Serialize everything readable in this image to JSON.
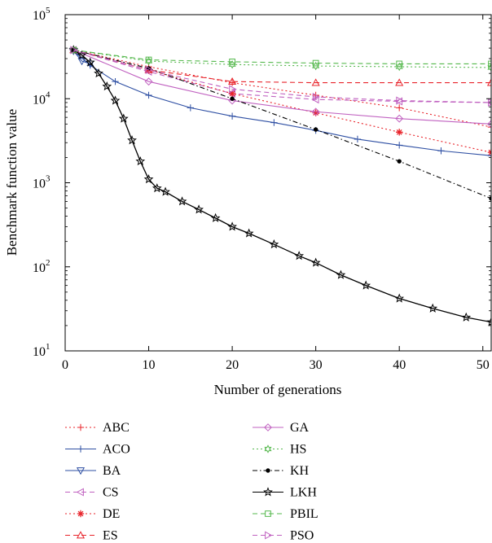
{
  "chart_data": {
    "type": "line",
    "xlabel": "Number of generations",
    "ylabel": "Benchmark function value",
    "xlim": [
      0,
      51
    ],
    "ylim": [
      10,
      100000
    ],
    "yscale": "log",
    "grid": false,
    "legend_position": "below",
    "x_ticks": [
      0,
      10,
      20,
      30,
      40,
      50
    ],
    "x_tick_labels": [
      "0",
      "10",
      "20",
      "30",
      "40",
      "50"
    ],
    "y_ticks": [
      10,
      100,
      1000,
      10000,
      100000
    ],
    "y_tick_labels": [
      {
        "base": "10",
        "exp": "1"
      },
      {
        "base": "10",
        "exp": "2"
      },
      {
        "base": "10",
        "exp": "3"
      },
      {
        "base": "10",
        "exp": "4"
      },
      {
        "base": "10",
        "exp": "5"
      }
    ],
    "series": [
      {
        "name": "ABC",
        "color": "#e8232a",
        "dash": "2,3",
        "marker": "plus",
        "x": [
          1,
          10,
          20,
          30,
          40,
          51
        ],
        "y": [
          38000,
          24000,
          15500,
          11000,
          7800,
          4600
        ]
      },
      {
        "name": "ACO",
        "color": "#2e4fa3",
        "dash": "",
        "marker": "plus",
        "x": [
          1,
          3,
          6,
          10,
          15,
          20,
          25,
          30,
          35,
          40,
          45,
          51
        ],
        "y": [
          37000,
          25000,
          16000,
          11000,
          7800,
          6200,
          5200,
          4200,
          3300,
          2800,
          2400,
          2100
        ]
      },
      {
        "name": "BA",
        "color": "#2e4fa3",
        "dash": "",
        "marker": "triangle-down",
        "x": [
          1,
          2,
          3
        ],
        "y": [
          37000,
          28000,
          26000
        ]
      },
      {
        "name": "CS",
        "color": "#c061c0",
        "dash": "6,4",
        "marker": "triangle-left",
        "x": [
          1,
          10,
          20,
          30,
          40,
          51
        ],
        "y": [
          38000,
          21000,
          11500,
          9800,
          9300,
          9000
        ]
      },
      {
        "name": "DE",
        "color": "#e8232a",
        "dash": "2,3",
        "marker": "asterisk",
        "x": [
          1,
          10,
          20,
          30,
          40,
          51
        ],
        "y": [
          38000,
          22000,
          11500,
          6800,
          4000,
          2300
        ]
      },
      {
        "name": "ES",
        "color": "#e8232a",
        "dash": "6,4",
        "marker": "triangle-up",
        "x": [
          1,
          10,
          20,
          30,
          40,
          51
        ],
        "y": [
          38000,
          22000,
          16000,
          15500,
          15500,
          15500
        ]
      },
      {
        "name": "GA",
        "color": "#c061c0",
        "dash": "",
        "marker": "diamond",
        "x": [
          1,
          10,
          20,
          30,
          40,
          51
        ],
        "y": [
          38000,
          16000,
          9500,
          7000,
          5800,
          5000
        ]
      },
      {
        "name": "HS",
        "color": "#55b84d",
        "dash": "2,3",
        "marker": "hexagram",
        "x": [
          1,
          10,
          20,
          30,
          40,
          51
        ],
        "y": [
          38000,
          28000,
          25500,
          24500,
          24000,
          23500
        ]
      },
      {
        "name": "KH",
        "color": "#000000",
        "dash": "6,3,1.5,3",
        "marker": "dot",
        "x": [
          1,
          10,
          20,
          30,
          40,
          51
        ],
        "y": [
          38000,
          23000,
          10000,
          4300,
          1800,
          650
        ]
      },
      {
        "name": "LKH",
        "color": "#000000",
        "dash": "",
        "marker": "star",
        "x": [
          1,
          2,
          3,
          4,
          5,
          6,
          7,
          8,
          9,
          10,
          11,
          12,
          14,
          16,
          18,
          20,
          22,
          25,
          28,
          30,
          33,
          36,
          40,
          44,
          48,
          51
        ],
        "y": [
          38000,
          33000,
          27000,
          20000,
          14000,
          9500,
          5800,
          3200,
          1800,
          1100,
          860,
          780,
          600,
          480,
          380,
          300,
          250,
          185,
          135,
          112,
          80,
          60,
          42,
          32,
          25,
          22
        ]
      },
      {
        "name": "PBIL",
        "color": "#55b84d",
        "dash": "6,4",
        "marker": "square",
        "x": [
          1,
          10,
          20,
          30,
          40,
          51
        ],
        "y": [
          38000,
          29000,
          27500,
          26500,
          26000,
          26000
        ]
      },
      {
        "name": "PSO",
        "color": "#c061c0",
        "dash": "6,4",
        "marker": "triangle-right",
        "x": [
          1,
          10,
          20,
          30,
          40,
          51
        ],
        "y": [
          38000,
          22000,
          13000,
          10500,
          9500,
          9000
        ]
      }
    ]
  }
}
